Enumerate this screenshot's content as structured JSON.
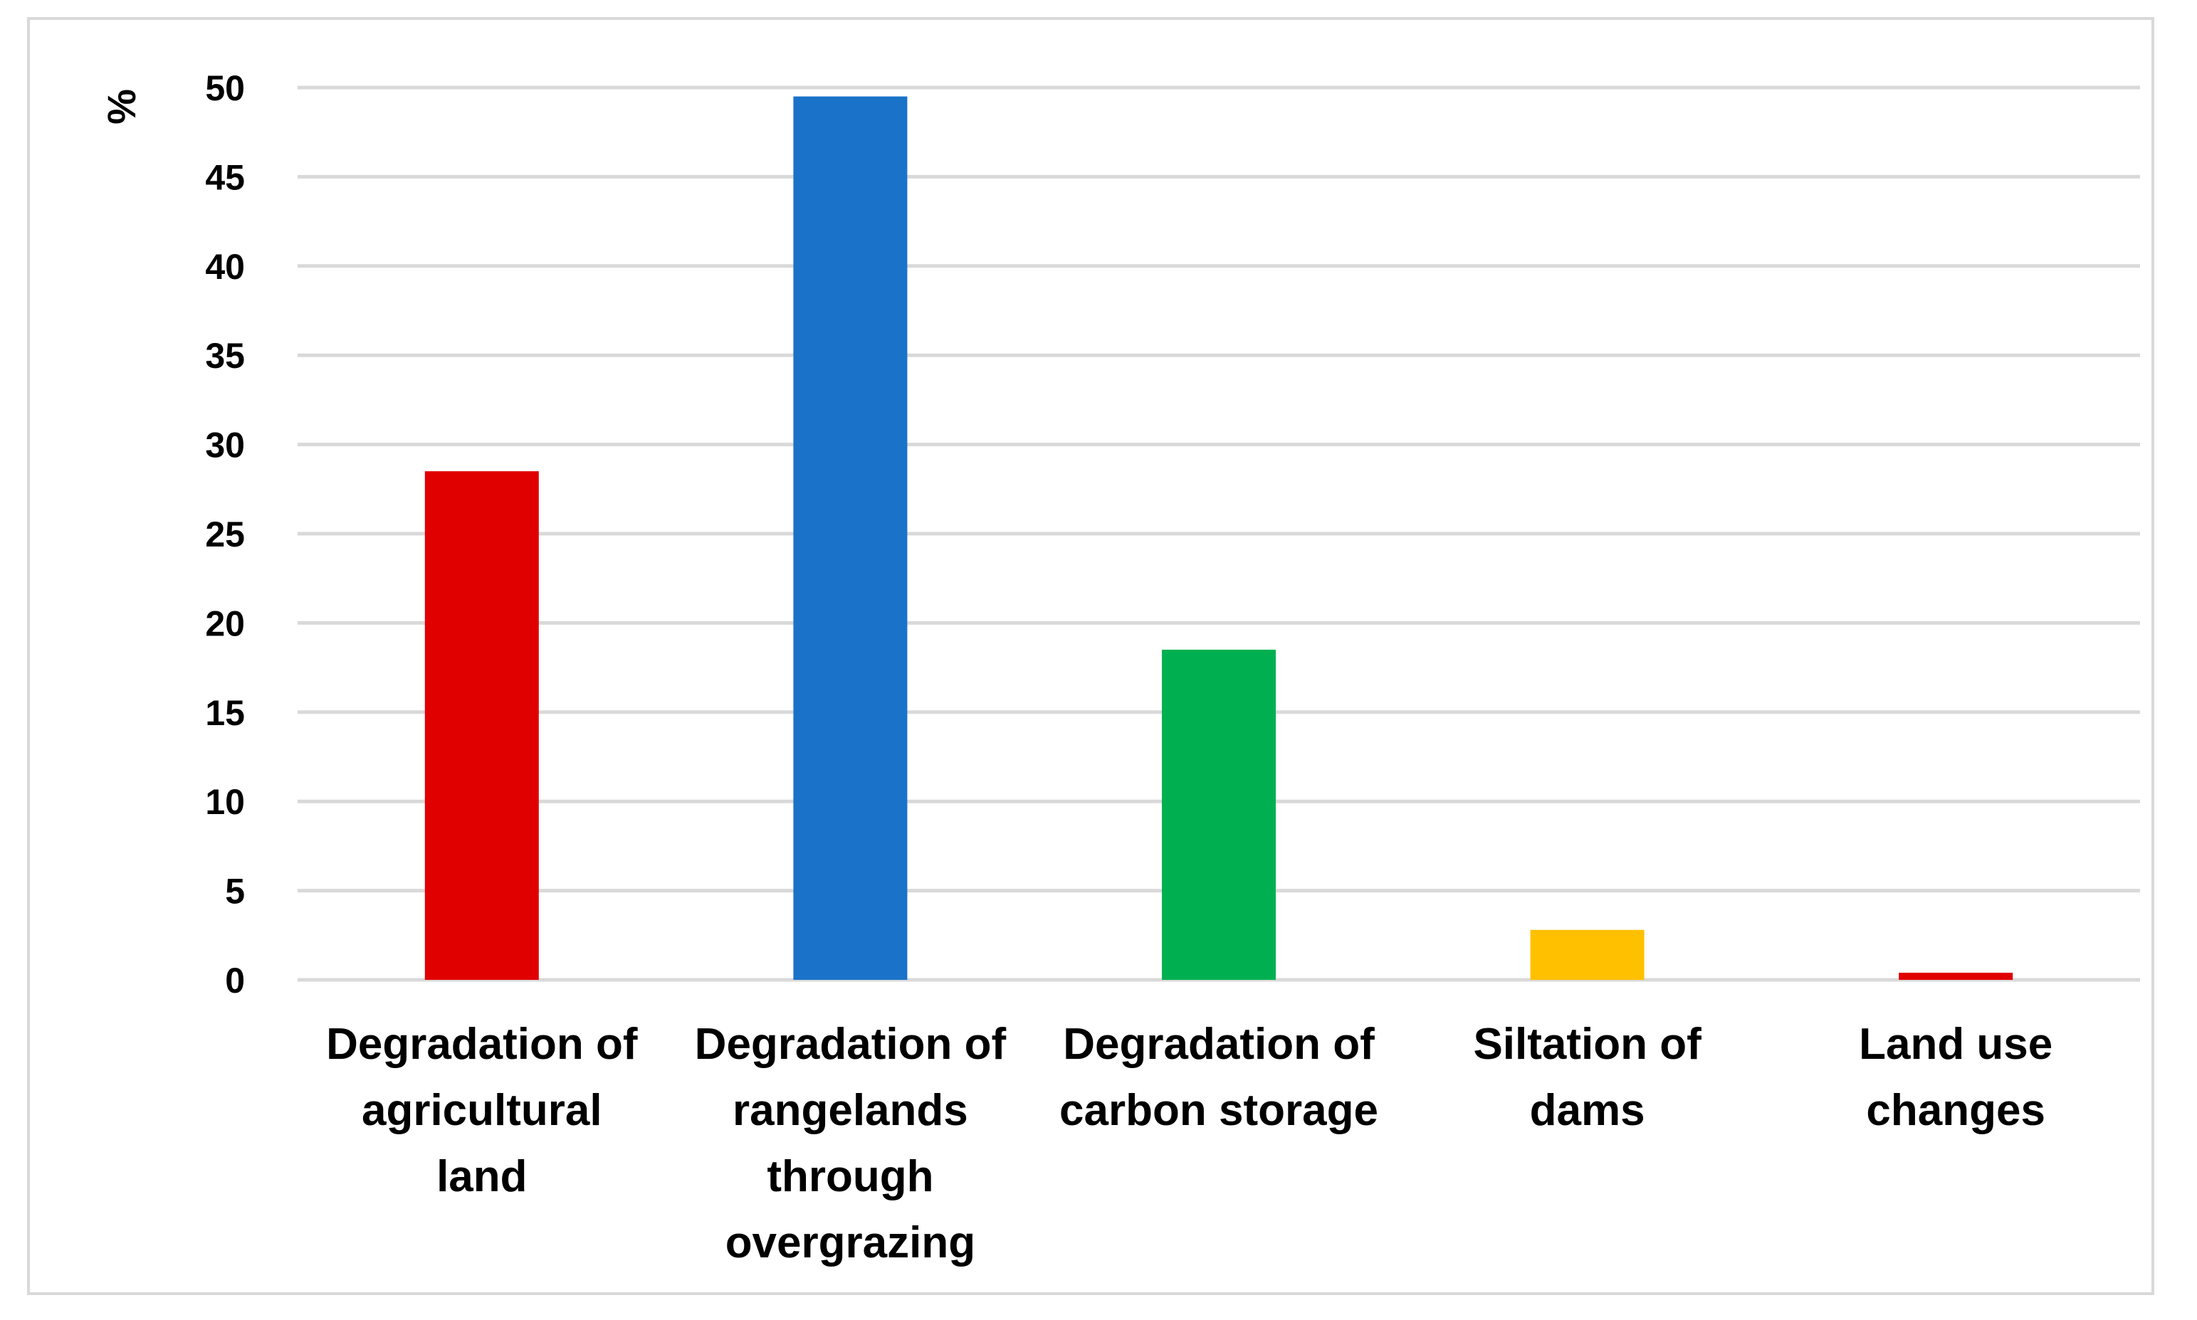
{
  "chart_data": {
    "type": "bar",
    "title": "",
    "xlabel": "",
    "ylabel": "%",
    "ylim": [
      0,
      50
    ],
    "yticks": [
      0,
      5,
      10,
      15,
      20,
      25,
      30,
      35,
      40,
      45,
      50
    ],
    "grid": true,
    "legend": "none",
    "categories": [
      "Degradation of agricultural land",
      "Degradation of rangelands through overgrazing",
      "Degradation of carbon storage",
      "Siltation of dams",
      "Land use changes"
    ],
    "category_lines": [
      [
        "Degradation of",
        "agricultural",
        "land"
      ],
      [
        "Degradation of",
        "rangelands",
        "through",
        "overgrazing"
      ],
      [
        "Degradation of",
        "carbon storage"
      ],
      [
        "Siltation of",
        "dams"
      ],
      [
        "Land use",
        "changes"
      ]
    ],
    "values": [
      28.5,
      49.5,
      18.5,
      2.8,
      0.4
    ],
    "colors": [
      "#e00000",
      "#1a73c8",
      "#00b050",
      "#ffc000",
      "#e00000"
    ],
    "gridline_color": "#d9d9d9"
  }
}
